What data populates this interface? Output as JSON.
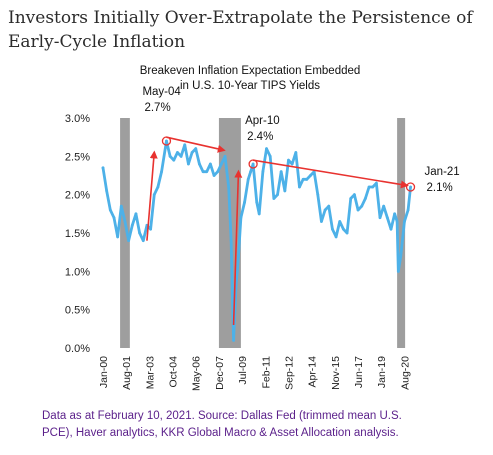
{
  "headline": {
    "line1": "Investors Initially Over-Extrapolate the Persistence of",
    "line2": "Early-Cycle Inflation"
  },
  "source_note": {
    "line1": "Data as at February 10, 2021. Source: Dallas Fed (trimmed mean U.S.",
    "line2": "PCE), Haver analytics, KKR Global Macro & Asset Allocation analysis."
  },
  "colors": {
    "series": "#4db1e8",
    "arrows": "#e8322f",
    "shading": "#9e9e9e"
  },
  "chart_data": {
    "type": "line",
    "title_line1": "Breakeven Inflation Expectation Embedded",
    "title_line2": "in U.S. 10-Year TIPS Yields",
    "xlabel": "",
    "ylabel": "",
    "ylim": [
      0.0,
      3.0
    ],
    "y_ticks": [
      "0.0%",
      "0.5%",
      "1.0%",
      "1.5%",
      "2.0%",
      "2.5%",
      "3.0%"
    ],
    "x_ticks": [
      "Jan-00",
      "Aug-01",
      "Mar-03",
      "Oct-04",
      "May-06",
      "Dec-07",
      "Jul-09",
      "Feb-11",
      "Sep-12",
      "Apr-14",
      "Nov-15",
      "Jun-17",
      "Jan-19",
      "Aug-20"
    ],
    "grid": false,
    "legend": "none",
    "recession_shading": [
      [
        "2001-03",
        "2001-11"
      ],
      [
        "2007-12",
        "2009-06"
      ],
      [
        "2020-02",
        "2020-04"
      ]
    ],
    "series": [
      {
        "x": [
          "2000-01",
          "2000-04",
          "2000-07",
          "2000-10",
          "2001-01",
          "2001-04",
          "2001-07",
          "2001-10",
          "2002-01",
          "2002-04",
          "2002-07",
          "2002-10",
          "2003-01",
          "2003-04",
          "2003-07",
          "2003-10",
          "2004-01",
          "2004-05",
          "2004-08",
          "2004-11",
          "2005-02",
          "2005-05",
          "2005-08",
          "2005-11",
          "2006-02",
          "2006-05",
          "2006-08",
          "2006-11",
          "2007-02",
          "2007-05",
          "2007-08",
          "2007-11",
          "2008-02",
          "2008-05",
          "2008-08",
          "2008-10",
          "2008-11",
          "2008-12",
          "2009-02",
          "2009-04",
          "2009-06",
          "2009-09",
          "2009-12",
          "2010-02",
          "2010-04",
          "2010-07",
          "2010-09",
          "2010-12",
          "2011-03",
          "2011-06",
          "2011-09",
          "2011-12",
          "2012-03",
          "2012-06",
          "2012-09",
          "2012-12",
          "2013-03",
          "2013-06",
          "2013-09",
          "2013-12",
          "2014-03",
          "2014-06",
          "2014-09",
          "2014-12",
          "2015-03",
          "2015-06",
          "2015-09",
          "2015-12",
          "2016-03",
          "2016-06",
          "2016-09",
          "2016-12",
          "2017-03",
          "2017-06",
          "2017-09",
          "2017-12",
          "2018-03",
          "2018-06",
          "2018-09",
          "2018-12",
          "2019-03",
          "2019-06",
          "2019-09",
          "2019-12",
          "2020-02",
          "2020-03",
          "2020-05",
          "2020-08",
          "2020-11",
          "2021-01"
        ],
        "values": [
          2.35,
          2.05,
          1.8,
          1.7,
          1.45,
          1.85,
          1.65,
          1.4,
          1.6,
          1.75,
          1.5,
          1.4,
          1.6,
          1.55,
          2.0,
          2.1,
          2.3,
          2.7,
          2.5,
          2.45,
          2.55,
          2.5,
          2.65,
          2.4,
          2.55,
          2.6,
          2.4,
          2.3,
          2.3,
          2.4,
          2.25,
          2.3,
          2.4,
          2.5,
          2.1,
          1.4,
          0.7,
          0.1,
          0.8,
          1.2,
          1.7,
          1.9,
          2.2,
          2.3,
          2.4,
          1.9,
          1.75,
          2.3,
          2.6,
          2.5,
          1.95,
          2.0,
          2.3,
          2.05,
          2.45,
          2.4,
          2.55,
          2.1,
          2.2,
          2.2,
          2.25,
          2.3,
          2.0,
          1.65,
          1.8,
          1.85,
          1.55,
          1.45,
          1.65,
          1.55,
          1.5,
          1.95,
          2.0,
          1.8,
          1.85,
          1.95,
          2.1,
          2.1,
          2.15,
          1.7,
          1.85,
          1.7,
          1.55,
          1.75,
          1.65,
          1.0,
          1.2,
          1.65,
          1.8,
          2.1
        ]
      }
    ],
    "annotations": [
      {
        "label": "May-04",
        "value_label": "2.7%",
        "x": "2004-05",
        "y": 2.7
      },
      {
        "label": "Apr-10",
        "value_label": "2.4%",
        "x": "2010-04",
        "y": 2.4
      },
      {
        "label": "Jan-21",
        "value_label": "2.1%",
        "x": "2021-01",
        "y": 2.1
      }
    ],
    "arrows": [
      {
        "from": [
          "2003-01",
          1.4
        ],
        "to": [
          "2003-07",
          2.55
        ]
      },
      {
        "from": [
          "2004-05",
          2.75
        ],
        "to": [
          "2008-04",
          2.58
        ]
      },
      {
        "from": [
          "2008-12",
          0.3
        ],
        "to": [
          "2009-04",
          2.3
        ]
      },
      {
        "from": [
          "2010-04",
          2.45
        ],
        "to": [
          "2020-10",
          2.12
        ]
      }
    ]
  }
}
